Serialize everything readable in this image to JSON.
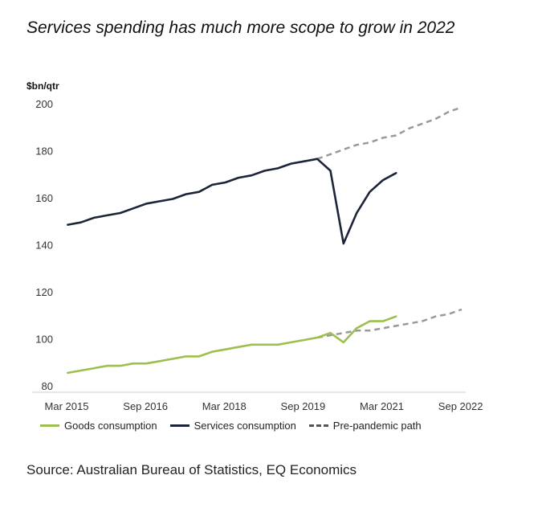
{
  "chart_data": {
    "type": "line",
    "title": "Services spending has much more scope to grow in 2022",
    "ylabel": "$bn/qtr",
    "xlabel": "",
    "ylim": [
      80,
      200
    ],
    "yticks": [
      80,
      100,
      120,
      140,
      160,
      180,
      200
    ],
    "xlim": [
      0,
      31
    ],
    "xtick_labels": [
      "Mar 2015",
      "Sep 2016",
      "Mar 2018",
      "Sep 2019",
      "Mar 2021",
      "Sep 2022"
    ],
    "xtick_positions": [
      0,
      6,
      12,
      18,
      24,
      30
    ],
    "series": [
      {
        "name": "Goods consumption",
        "color": "#9dbf4f",
        "style": "solid",
        "x": [
          1,
          2,
          3,
          4,
          5,
          6,
          7,
          8,
          9,
          10,
          11,
          12,
          13,
          14,
          15,
          16,
          17,
          18,
          19,
          20,
          21,
          22,
          23,
          24,
          25,
          26
        ],
        "values": [
          85.5,
          86.5,
          87.5,
          88.5,
          88.5,
          89.5,
          89.5,
          90.5,
          91.5,
          92.5,
          92.5,
          94.5,
          95.5,
          96.5,
          97.5,
          97.5,
          97.5,
          98.5,
          99.5,
          100.5,
          102.5,
          98.5,
          104.5,
          107.5,
          107.5,
          109.5
        ]
      },
      {
        "name": "Services consumption",
        "color": "#1b2438",
        "style": "solid",
        "x": [
          1,
          2,
          3,
          4,
          5,
          6,
          7,
          8,
          9,
          10,
          11,
          12,
          13,
          14,
          15,
          16,
          17,
          18,
          19,
          20,
          21,
          22,
          23,
          24,
          25,
          26
        ],
        "values": [
          148.5,
          149.5,
          151.5,
          152.5,
          153.5,
          155.5,
          157.5,
          158.5,
          159.5,
          161.5,
          162.5,
          165.5,
          166.5,
          168.5,
          169.5,
          171.5,
          172.5,
          174.5,
          175.5,
          176.5,
          171.5,
          140.5,
          153.5,
          162.5,
          167.5,
          170.5
        ]
      },
      {
        "name": "Pre-pandemic path (services)",
        "color": "#999999",
        "style": "dashed",
        "x": [
          20,
          21,
          22,
          23,
          24,
          25,
          26,
          27,
          28,
          29,
          30,
          31
        ],
        "values": [
          176.5,
          178.5,
          180.5,
          182.5,
          183.5,
          185.5,
          186.5,
          189.5,
          191.5,
          193.5,
          196.5,
          198.5
        ]
      },
      {
        "name": "Pre-pandemic path (goods)",
        "color": "#999999",
        "style": "dashed",
        "x": [
          20,
          21,
          22,
          23,
          24,
          25,
          26,
          27,
          28,
          29,
          30,
          31
        ],
        "values": [
          100.5,
          101.5,
          102.5,
          103.5,
          103.5,
          104.5,
          105.5,
          106.5,
          107.5,
          109.5,
          110.5,
          112.5
        ]
      }
    ],
    "legend": [
      {
        "label": "Goods consumption",
        "color": "#9dbf4f",
        "style": "solid"
      },
      {
        "label": "Services consumption",
        "color": "#1b2438",
        "style": "solid"
      },
      {
        "label": "Pre-pandemic path",
        "color": "#555555",
        "style": "dashed"
      }
    ],
    "legend_position": "bottom",
    "grid": false,
    "source": "Source: Australian Bureau of Statistics, EQ Economics"
  }
}
